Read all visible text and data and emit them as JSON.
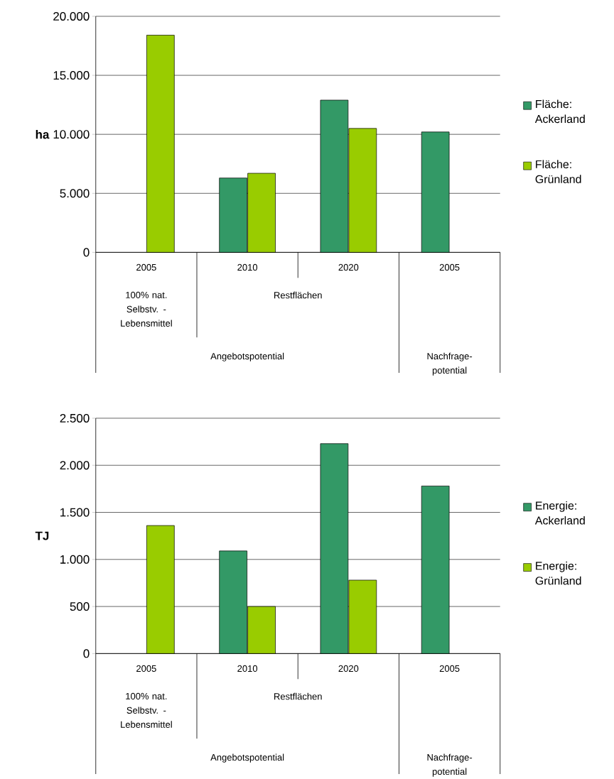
{
  "chart_data": [
    {
      "type": "bar",
      "ylabel": "ha",
      "categories": [
        "2005",
        "2010",
        "2020",
        "2005"
      ],
      "annotations": [
        "100% nat. Selbstv. - Lebensmittel",
        "Restflächen",
        "Angebotspotential",
        "Nachfrage-potential"
      ],
      "series": [
        {
          "name": "Fläche: Ackerland",
          "color": "#339966",
          "values": [
            null,
            6300,
            12900,
            10200
          ]
        },
        {
          "name": "Fläche: Grünland",
          "color": "#99cc00",
          "values": [
            18400,
            6700,
            10500,
            null
          ]
        }
      ],
      "ylim": [
        0,
        20000
      ],
      "yticks": [
        0,
        {
          "value": 5000,
          "label": "5.000"
        },
        {
          "value": 10000,
          "label": "10.000"
        },
        {
          "value": 15000,
          "label": "15.000"
        },
        {
          "value": 20000,
          "label": "20.000"
        }
      ],
      "grid": "y",
      "legend": "right"
    },
    {
      "type": "bar",
      "ylabel": "TJ",
      "categories": [
        "2005",
        "2010",
        "2020",
        "2005"
      ],
      "annotations": [
        "100% nat. Selbstv. - Lebensmittel",
        "Restflächen",
        "Angebotspotential",
        "Nachfrage-potential"
      ],
      "series": [
        {
          "name": "Energie: Ackerland",
          "color": "#339966",
          "values": [
            null,
            1090,
            2230,
            1780
          ]
        },
        {
          "name": "Energie: Grünland",
          "color": "#99cc00",
          "values": [
            1360,
            500,
            780,
            null
          ]
        }
      ],
      "ylim": [
        0,
        2500
      ],
      "yticks": [
        0,
        500,
        {
          "value": 1000,
          "label": "1.000"
        },
        {
          "value": 1500,
          "label": "1.500"
        },
        {
          "value": 2000,
          "label": "2.000"
        },
        {
          "value": 2500,
          "label": "2.500"
        }
      ],
      "grid": "y",
      "legend": "right"
    }
  ]
}
